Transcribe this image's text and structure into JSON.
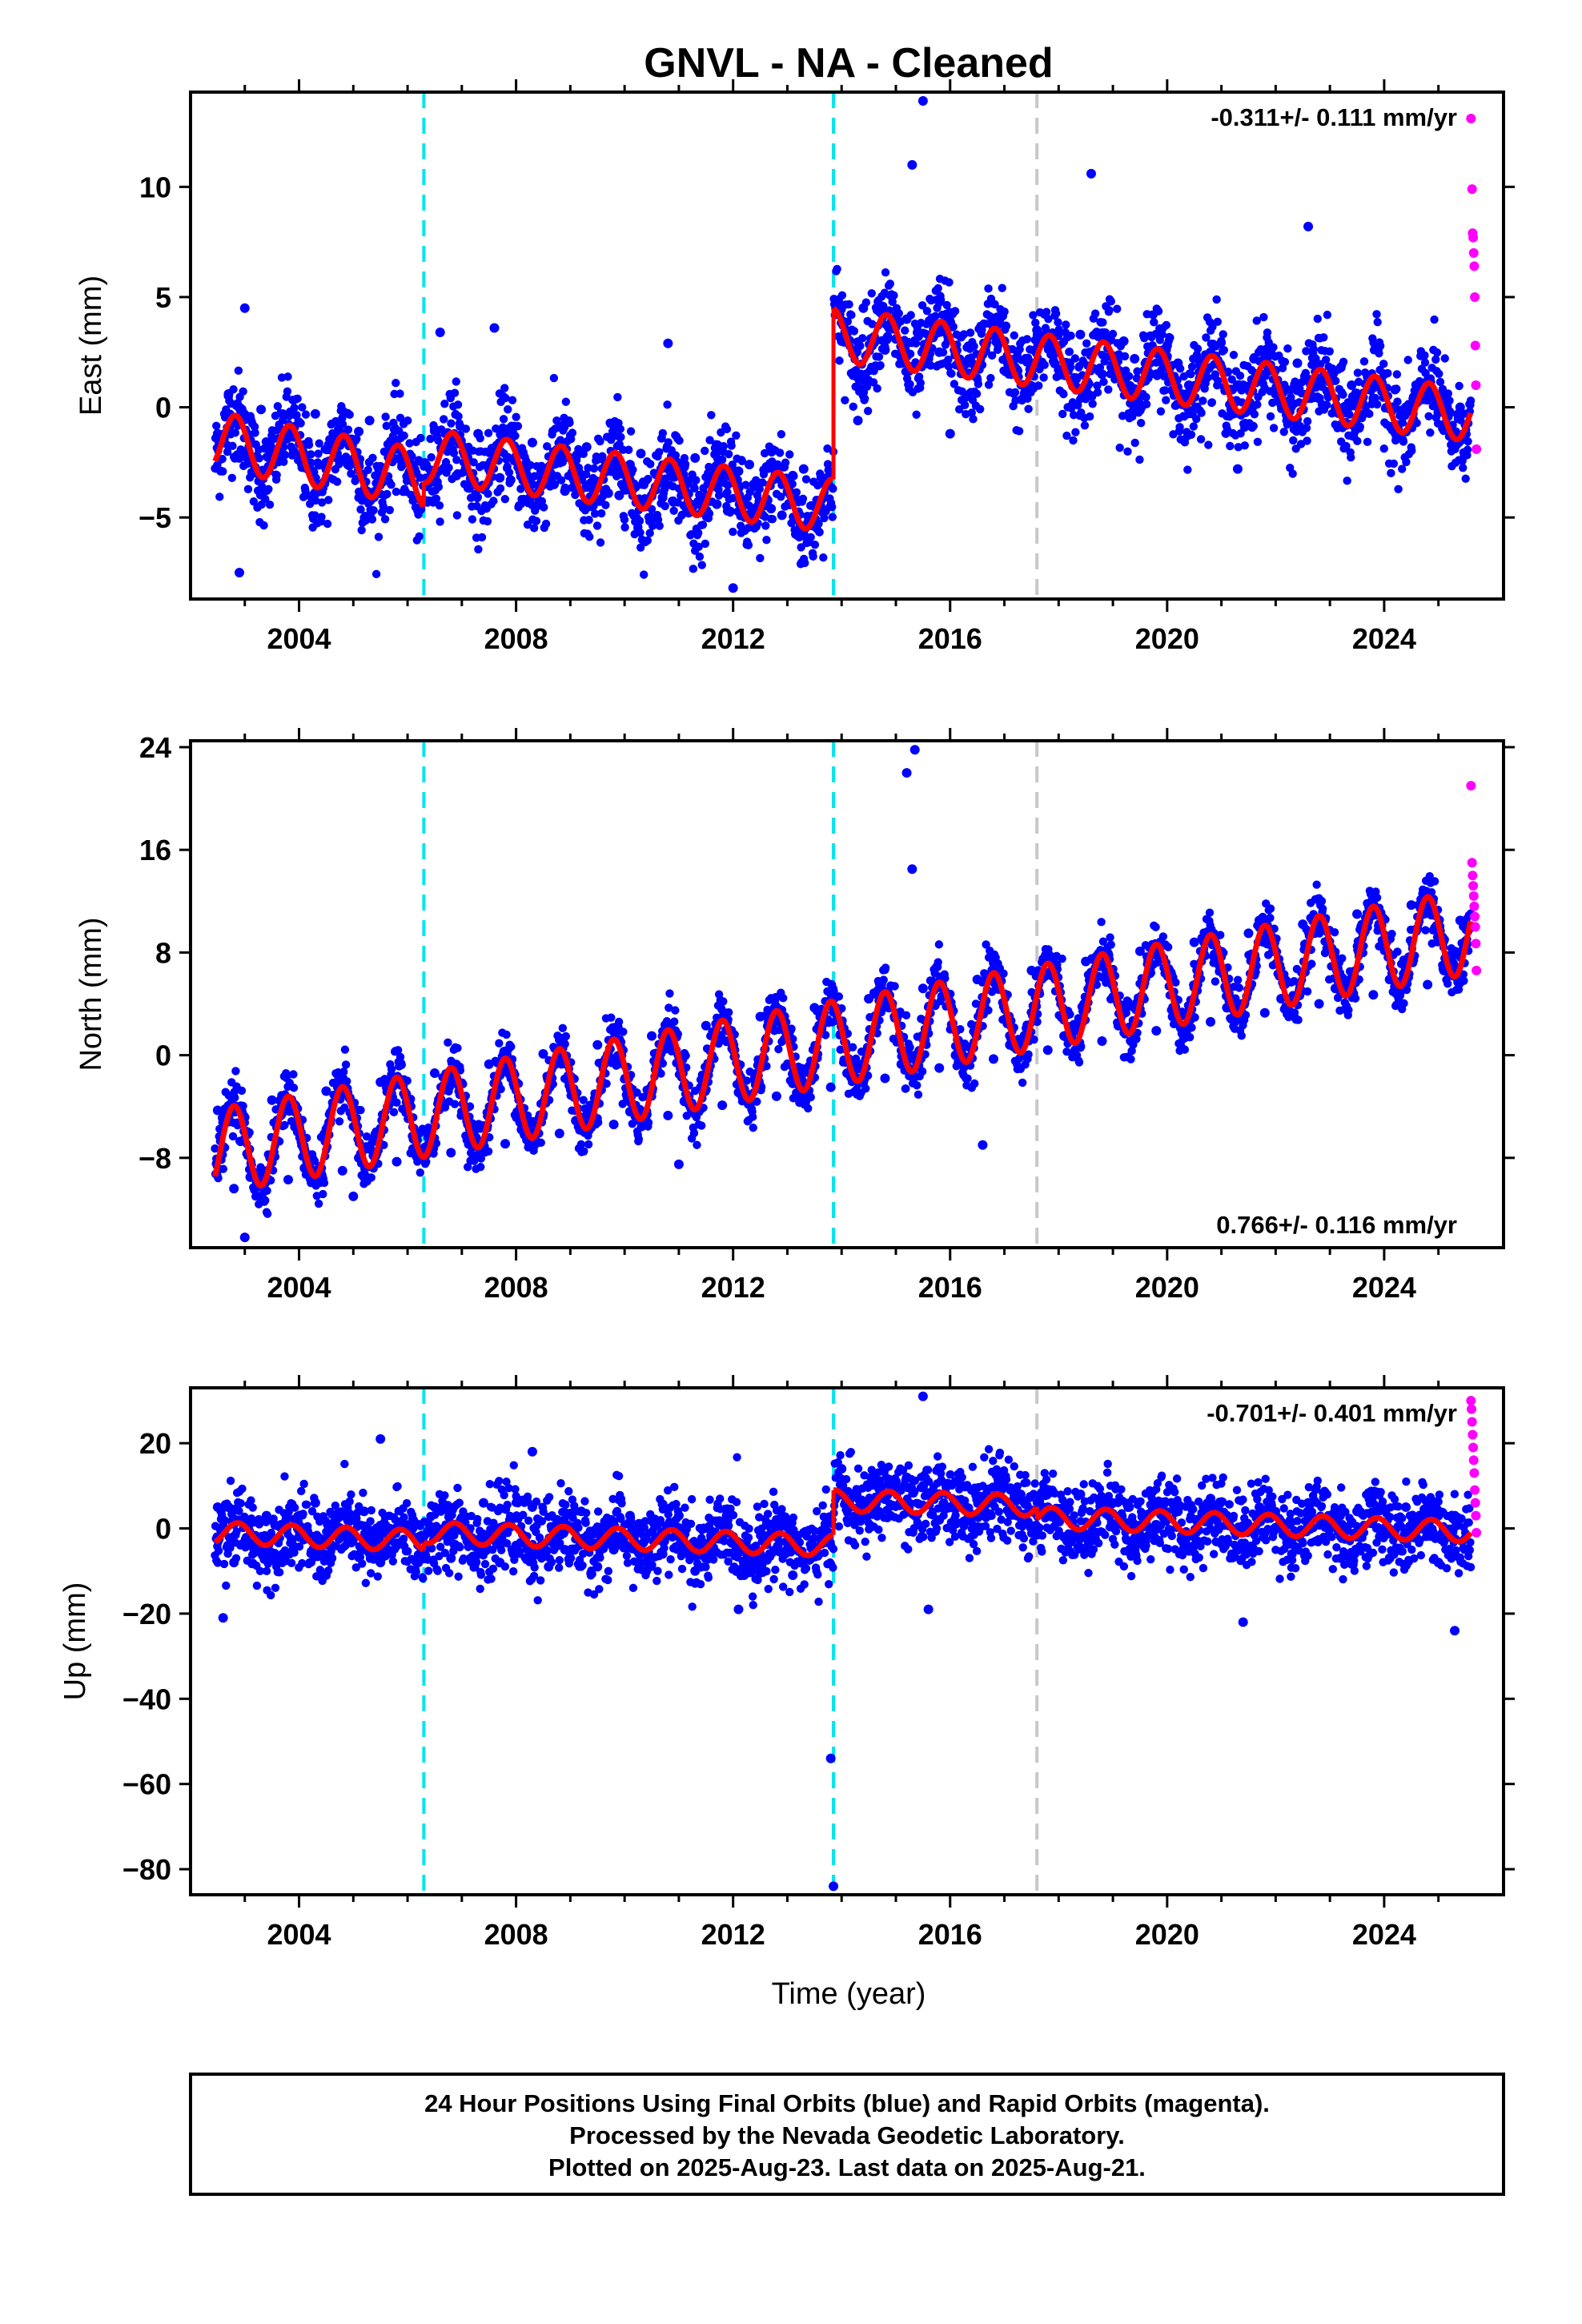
{
  "title": "GNVL  - NA - Cleaned",
  "footer": {
    "lines": [
      "24 Hour Positions Using Final Orbits (blue) and Rapid Orbits (magenta).",
      "Processed by the Nevada Geodetic Laboratory.",
      "Plotted on 2025-Aug-23. Last data on 2025-Aug-21."
    ]
  },
  "colors": {
    "final_orbits": "#0000ff",
    "rapid_orbits": "#ff00ff",
    "model_fit": "#ff0000",
    "equipment_change": "#00e5ee",
    "earthquake": "#c8c8c8",
    "frame": "#000000"
  },
  "chart_data": [
    {
      "type": "scatter",
      "component": "east",
      "xlabel": "",
      "ylabel": "East (mm)",
      "xlim": [
        2002.0,
        2026.2
      ],
      "ylim": [
        -8.7,
        14.3
      ],
      "xticks": [
        2004,
        2008,
        2012,
        2016,
        2020,
        2024
      ],
      "yticks": [
        -5,
        0,
        5,
        10
      ],
      "rate_label": "-0.311+/- 0.111 mm/yr",
      "rate_position": "top-right",
      "vertical_lines": [
        {
          "x": 2006.3,
          "kind": "equipment_change"
        },
        {
          "x": 2013.85,
          "kind": "equipment_change"
        },
        {
          "x": 2017.6,
          "kind": "earthquake"
        }
      ],
      "fit_segments": [
        {
          "x_start": 2002.45,
          "x_end": 2006.3,
          "offset": -1.5,
          "trend": -0.45,
          "amplitude": 1.3,
          "phase_year": 0.58
        },
        {
          "x_start": 2006.3,
          "x_end": 2013.85,
          "offset": -2.2,
          "trend": -0.3,
          "amplitude": 1.2,
          "phase_year": 0.58
        },
        {
          "x_start": 2013.85,
          "x_end": 2025.6,
          "offset": 3.3,
          "trend": -0.31,
          "amplitude": 1.2,
          "phase_year": 0.58
        }
      ],
      "series": [
        {
          "name": "Final orbits",
          "color": "#0000ff",
          "x": [
            2002.5,
            2002.7,
            2002.9,
            2003.1,
            2003.3,
            2003.5,
            2003.7,
            2003.9,
            2004.1,
            2004.3,
            2004.5,
            2004.7,
            2004.9,
            2005.1,
            2005.3,
            2005.5,
            2005.7,
            2005.9,
            2006.1,
            2006.5,
            2006.7,
            2006.9,
            2007.1,
            2007.3,
            2007.5,
            2007.7,
            2007.9,
            2008.1,
            2008.3,
            2008.5,
            2008.7,
            2008.9,
            2009.1,
            2009.3,
            2009.5,
            2009.7,
            2009.9,
            2010.1,
            2010.3,
            2010.5,
            2010.7,
            2010.9,
            2011.1,
            2011.3,
            2011.5,
            2011.7,
            2011.9,
            2012.1,
            2012.3,
            2012.5,
            2012.7,
            2012.9,
            2013.1,
            2013.3,
            2013.5,
            2013.7,
            2014.0,
            2014.2,
            2014.4,
            2014.6,
            2014.8,
            2015.0,
            2015.2,
            2015.4,
            2015.6,
            2015.8,
            2016.0,
            2016.2,
            2016.4,
            2016.6,
            2016.8,
            2017.0,
            2017.2,
            2017.4,
            2017.6,
            2017.8,
            2018.0,
            2018.2,
            2018.4,
            2018.6,
            2018.8,
            2019.0,
            2019.2,
            2019.4,
            2019.6,
            2019.8,
            2020.0,
            2020.2,
            2020.4,
            2020.6,
            2020.8,
            2021.0,
            2021.2,
            2021.4,
            2021.6,
            2021.8,
            2022.0,
            2022.2,
            2022.4,
            2022.6,
            2022.8,
            2023.0,
            2023.2,
            2023.4,
            2023.6,
            2023.8,
            2024.0,
            2024.2,
            2024.4,
            2024.6,
            2024.8,
            2025.0,
            2025.2,
            2025.4
          ],
          "y": [
            -1.2,
            0.6,
            -2.3,
            -1.5,
            -0.1,
            -2.4,
            -1.8,
            -2.0,
            -1.7,
            -0.3,
            -2.5,
            -2.1,
            -2.6,
            -1.1,
            -0.6,
            -2.7,
            -2.2,
            -2.6,
            -3.0,
            -1.0,
            -2.7,
            -3.1,
            -2.9,
            -1.2,
            -2.8,
            -3.2,
            -3.3,
            -2.1,
            -1.6,
            -3.3,
            -3.5,
            -3.8,
            -2.4,
            -1.8,
            -3.6,
            -3.9,
            -4.0,
            -2.6,
            -2.1,
            -4.0,
            -4.1,
            -4.3,
            -2.7,
            -2.3,
            -4.2,
            -4.4,
            -4.7,
            -2.9,
            -2.6,
            -4.4,
            -4.6,
            -4.9,
            -3.1,
            -2.8,
            -4.5,
            -4.7,
            3.0,
            2.6,
            4.5,
            3.2,
            2.6,
            3.1,
            4.0,
            3.4,
            2.2,
            2.5,
            3.8,
            3.2,
            2.0,
            2.4,
            3.6,
            3.0,
            1.8,
            2.2,
            3.5,
            2.8,
            1.7,
            2.0,
            3.3,
            2.5,
            1.5,
            1.8,
            3.0,
            2.2,
            1.2,
            1.5,
            2.8,
            2.0,
            1.0,
            1.3,
            2.5,
            1.8,
            0.8,
            1.0,
            2.2,
            1.5,
            0.6,
            0.8,
            2.0,
            1.2,
            0.4,
            0.6,
            1.8,
            1.0,
            0.2,
            0.4,
            1.5,
            0.8,
            0.0,
            0.2,
            1.2,
            0.5,
            -0.2,
            0.0
          ],
          "outliers": [
            [
              2002.9,
              -7.5
            ],
            [
              2003.0,
              4.5
            ],
            [
              2012.0,
              -8.2
            ],
            [
              2015.5,
              13.9
            ],
            [
              2015.3,
              11.0
            ],
            [
              2018.6,
              10.6
            ],
            [
              2022.6,
              8.2
            ],
            [
              2007.6,
              3.6
            ],
            [
              2006.6,
              3.4
            ],
            [
              2010.8,
              2.9
            ],
            [
              2014.3,
              -0.6
            ],
            [
              2016.0,
              -1.2
            ],
            [
              2021.3,
              -2.8
            ]
          ]
        },
        {
          "name": "Rapid orbits",
          "color": "#ff00ff",
          "x": [
            2025.6,
            2025.62,
            2025.63,
            2025.64,
            2025.65,
            2025.66,
            2025.67,
            2025.68,
            2025.69,
            2025.7
          ],
          "y": [
            13.1,
            9.9,
            7.9,
            7.7,
            7.0,
            6.4,
            5.0,
            2.8,
            1.0,
            -1.9
          ]
        }
      ]
    },
    {
      "type": "scatter",
      "component": "north",
      "xlabel": "",
      "ylabel": "North (mm)",
      "xlim": [
        2002.0,
        2026.2
      ],
      "ylim": [
        -15.0,
        24.5
      ],
      "xticks": [
        2004,
        2008,
        2012,
        2016,
        2020,
        2024
      ],
      "yticks": [
        -8,
        0,
        8,
        16,
        24
      ],
      "rate_label": "0.766+/- 0.116 mm/yr",
      "rate_position": "bottom-right",
      "vertical_lines": [
        {
          "x": 2006.3,
          "kind": "equipment_change"
        },
        {
          "x": 2013.85,
          "kind": "equipment_change"
        },
        {
          "x": 2017.6,
          "kind": "earthquake"
        }
      ],
      "fit_segments": [
        {
          "x_start": 2002.45,
          "x_end": 2025.6,
          "offset": -7.5,
          "trend": 0.74,
          "amplitude": 3.3,
          "phase_year": 0.55
        }
      ],
      "series": [
        {
          "name": "Final orbits",
          "color": "#0000ff",
          "x": [
            2002.5,
            2002.8,
            2003.1,
            2003.5,
            2003.8,
            2004.1,
            2004.5,
            2004.8,
            2005.1,
            2005.5,
            2005.8,
            2006.1,
            2006.5,
            2006.8,
            2007.1,
            2007.5,
            2007.8,
            2008.1,
            2008.5,
            2008.8,
            2009.1,
            2009.5,
            2009.8,
            2010.1,
            2010.5,
            2010.8,
            2011.1,
            2011.5,
            2011.8,
            2012.1,
            2012.5,
            2012.8,
            2013.1,
            2013.5,
            2013.8,
            2014.1,
            2014.5,
            2014.8,
            2015.1,
            2015.5,
            2015.8,
            2016.1,
            2016.5,
            2016.8,
            2017.1,
            2017.5,
            2017.8,
            2018.1,
            2018.5,
            2018.8,
            2019.1,
            2019.5,
            2019.8,
            2020.1,
            2020.5,
            2020.8,
            2021.1,
            2021.5,
            2021.8,
            2022.1,
            2022.5,
            2022.8,
            2023.1,
            2023.5,
            2023.8,
            2024.1,
            2024.5,
            2024.8,
            2025.1,
            2025.4
          ],
          "y": [
            -4.3,
            -10.4,
            -9.5,
            -3.5,
            -9.7,
            -8.8,
            -2.8,
            -9.0,
            -8.0,
            -2.1,
            -8.3,
            -7.3,
            -1.4,
            -7.6,
            -6.6,
            -0.7,
            -6.9,
            -5.8,
            0.1,
            -6.1,
            -5.1,
            0.8,
            -5.4,
            -4.4,
            1.5,
            -4.7,
            -3.6,
            2.3,
            -3.9,
            -2.9,
            3.0,
            -3.2,
            -2.2,
            3.7,
            -2.5,
            -1.4,
            4.4,
            -1.8,
            -0.7,
            5.2,
            -1.0,
            0.0,
            5.9,
            -0.3,
            0.8,
            6.6,
            0.4,
            1.5,
            7.3,
            1.1,
            2.3,
            8.1,
            1.9,
            3.0,
            8.8,
            2.6,
            3.7,
            9.5,
            3.3,
            4.4,
            10.2,
            4.0,
            5.2,
            11.0,
            4.7,
            5.9,
            11.7,
            5.5,
            6.6,
            10.5
          ],
          "outliers": [
            [
              2015.2,
              22.0
            ],
            [
              2015.35,
              23.8
            ],
            [
              2015.3,
              14.5
            ],
            [
              2003.0,
              -14.2
            ],
            [
              2005.0,
              -11.0
            ],
            [
              2011.0,
              -8.5
            ],
            [
              2016.6,
              -7.0
            ]
          ]
        },
        {
          "name": "Rapid orbits",
          "color": "#ff00ff",
          "x": [
            2025.6,
            2025.62,
            2025.63,
            2025.64,
            2025.65,
            2025.66,
            2025.67,
            2025.68,
            2025.69,
            2025.7
          ],
          "y": [
            21.0,
            15.0,
            14.0,
            13.2,
            12.4,
            11.6,
            10.8,
            10.0,
            8.7,
            6.6
          ]
        }
      ]
    },
    {
      "type": "scatter",
      "component": "up",
      "xlabel": "Time (year)",
      "ylabel": "Up (mm)",
      "xlim": [
        2002.0,
        2026.2
      ],
      "ylim": [
        -86.0,
        33.0
      ],
      "xticks": [
        2004,
        2008,
        2012,
        2016,
        2020,
        2024
      ],
      "yticks": [
        -80,
        -60,
        -40,
        -20,
        0,
        20
      ],
      "rate_label": "-0.701+/- 0.401 mm/yr",
      "rate_position": "top-right",
      "vertical_lines": [
        {
          "x": 2006.3,
          "kind": "equipment_change"
        },
        {
          "x": 2013.85,
          "kind": "equipment_change"
        },
        {
          "x": 2017.6,
          "kind": "earthquake"
        }
      ],
      "fit_segments": [
        {
          "x_start": 2002.45,
          "x_end": 2006.3,
          "offset": -1.0,
          "trend": -0.5,
          "amplitude": 2.5,
          "phase_year": 0.62
        },
        {
          "x_start": 2006.3,
          "x_end": 2013.85,
          "offset": -1.0,
          "trend": -0.4,
          "amplitude": 2.5,
          "phase_year": 0.62
        },
        {
          "x_start": 2013.85,
          "x_end": 2017.6,
          "offset": 6.5,
          "trend": -0.3,
          "amplitude": 2.5,
          "phase_year": 0.62
        },
        {
          "x_start": 2017.6,
          "x_end": 2025.6,
          "offset": 2.5,
          "trend": -0.4,
          "amplitude": 2.5,
          "phase_year": 0.62
        }
      ],
      "series": [
        {
          "name": "Final orbits",
          "color": "#0000ff",
          "x": [
            2002.5,
            2002.8,
            2003.1,
            2003.4,
            2003.7,
            2004.0,
            2004.3,
            2004.6,
            2004.9,
            2005.2,
            2005.5,
            2005.8,
            2006.1,
            2006.5,
            2006.8,
            2007.1,
            2007.4,
            2007.7,
            2008.0,
            2008.3,
            2008.6,
            2008.9,
            2009.2,
            2009.5,
            2009.8,
            2010.1,
            2010.4,
            2010.7,
            2011.0,
            2011.3,
            2011.6,
            2011.9,
            2012.2,
            2012.5,
            2012.8,
            2013.1,
            2013.4,
            2013.7,
            2014.0,
            2014.3,
            2014.6,
            2014.9,
            2015.2,
            2015.5,
            2015.8,
            2016.1,
            2016.4,
            2016.7,
            2017.0,
            2017.3,
            2017.8,
            2018.1,
            2018.4,
            2018.7,
            2019.0,
            2019.3,
            2019.6,
            2019.9,
            2020.2,
            2020.5,
            2020.8,
            2021.1,
            2021.4,
            2021.7,
            2022.0,
            2022.3,
            2022.6,
            2022.9,
            2023.2,
            2023.5,
            2023.8,
            2024.1,
            2024.4,
            2024.7,
            2025.0,
            2025.3
          ],
          "y": [
            5,
            -8,
            -4,
            3,
            -6,
            -2,
            6,
            -7,
            -3,
            4,
            -8,
            -4,
            2,
            5,
            -7,
            -3,
            6,
            -8,
            -4,
            5,
            -9,
            -5,
            4,
            -9,
            -5,
            3,
            -10,
            -6,
            3,
            -10,
            -6,
            2,
            -11,
            -6,
            2,
            -11,
            -7,
            1,
            14,
            9,
            11,
            3,
            12,
            10,
            2,
            11,
            9,
            3,
            10,
            8,
            5,
            -2,
            8,
            -1,
            6,
            5,
            -3,
            6,
            4,
            -4,
            7,
            3,
            -5,
            5,
            3,
            -6,
            6,
            2,
            -7,
            4,
            2,
            -7,
            5,
            1,
            -8,
            2
          ],
          "outliers": [
            [
              2002.6,
              -21
            ],
            [
              2005.5,
              21
            ],
            [
              2015.5,
              31
            ],
            [
              2015.6,
              -19
            ],
            [
              2013.8,
              -54
            ],
            [
              2013.85,
              -84
            ],
            [
              2021.4,
              -22
            ],
            [
              2025.3,
              -24
            ],
            [
              2012.1,
              -19
            ],
            [
              2008.3,
              18
            ]
          ]
        },
        {
          "name": "Rapid orbits",
          "color": "#ff00ff",
          "x": [
            2025.6,
            2025.61,
            2025.62,
            2025.63,
            2025.64,
            2025.65,
            2025.66,
            2025.67,
            2025.68,
            2025.69,
            2025.7
          ],
          "y": [
            30,
            28,
            25,
            22,
            19,
            16,
            13,
            9,
            6,
            3,
            -1
          ]
        }
      ]
    }
  ]
}
